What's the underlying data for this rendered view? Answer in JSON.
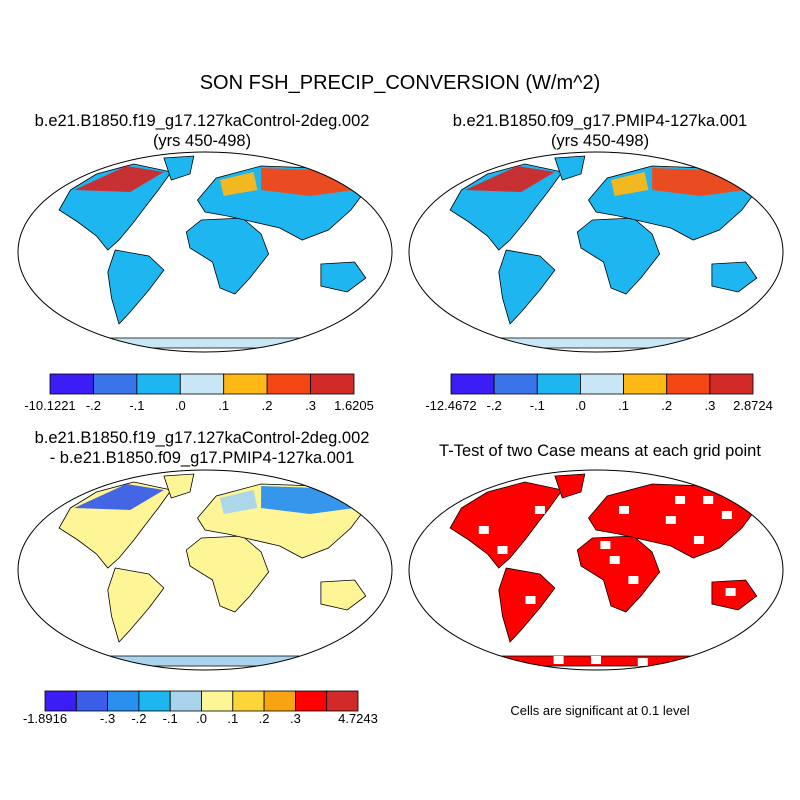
{
  "title": "SON FSH_PRECIP_CONVERSION (W/m^2)",
  "panels": [
    {
      "title_line1": "b.e21.B1850.f19_g17.127kaControl-2deg.002",
      "title_line2": "(yrs 450-498)",
      "type": "map",
      "colorbar": {
        "colors": [
          "#3a1ef5",
          "#3a74e8",
          "#1eb6f0",
          "#c8e6f6",
          "#fdb816",
          "#f54716",
          "#d22a28"
        ],
        "labels": [
          "-10.1221",
          "-.2",
          "-.1",
          ".0",
          ".1",
          ".2",
          ".3",
          "1.6205"
        ]
      }
    },
    {
      "title_line1": "b.e21.B1850.f09_g17.PMIP4-127ka.001",
      "title_line2": "(yrs 450-498)",
      "type": "map",
      "colorbar": {
        "colors": [
          "#3a1ef5",
          "#3a74e8",
          "#1eb6f0",
          "#c8e6f6",
          "#fdb816",
          "#f54716",
          "#d22a28"
        ],
        "labels": [
          "-12.4672",
          "-.2",
          "-.1",
          ".0",
          ".1",
          ".2",
          ".3",
          "2.8724"
        ]
      }
    },
    {
      "title_line1": "b.e21.B1850.f19_g17.127kaControl-2deg.002",
      "title_line2": "- b.e21.B1850.f09_g17.PMIP4-127ka.001",
      "type": "map",
      "colorbar": {
        "colors": [
          "#3a1ef5",
          "#3a5ee8",
          "#2a90f0",
          "#1eb6f0",
          "#a8d4ee",
          "#fef596",
          "#fdd53a",
          "#f8a312",
          "#ff0000",
          "#d22a28"
        ],
        "labels": [
          "-1.8916",
          "-.3",
          "-.2",
          "-.1",
          ".0",
          ".1",
          ".2",
          ".3",
          "4.7243"
        ]
      }
    },
    {
      "title_line1": "T-Test of two Case means at each grid point",
      "title_line2": "",
      "type": "significance-map",
      "note": "Cells are significant at 0.1 level",
      "significant_color": "#ff0000"
    }
  ]
}
